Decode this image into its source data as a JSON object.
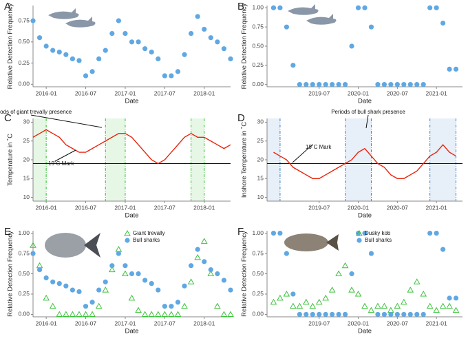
{
  "chart_data": [
    {
      "type": "scatter",
      "panel_label": "A",
      "xlabel": "Date",
      "ylabel": "Relative Detection Frequency",
      "x": [
        "2015-11",
        "2015-12",
        "2016-01",
        "2016-02",
        "2016-03",
        "2016-04",
        "2016-05",
        "2016-06",
        "2016-07",
        "2016-08",
        "2016-09",
        "2016-10",
        "2016-11",
        "2016-12",
        "2017-01",
        "2017-02",
        "2017-03",
        "2017-04",
        "2017-05",
        "2017-06",
        "2017-07",
        "2017-08",
        "2017-09",
        "2017-10",
        "2017-11",
        "2017-12",
        "2018-01",
        "2018-02",
        "2018-03",
        "2018-04",
        "2018-05"
      ],
      "series": [
        {
          "color": "#5fa8e3",
          "marker": "circle",
          "values": [
            0.75,
            0.55,
            0.45,
            0.4,
            0.38,
            0.35,
            0.3,
            0.28,
            0.1,
            0.15,
            0.3,
            0.4,
            0.6,
            0.75,
            0.6,
            0.5,
            0.5,
            0.42,
            0.38,
            0.3,
            0.1,
            0.1,
            0.15,
            0.35,
            0.6,
            0.8,
            0.65,
            0.55,
            0.5,
            0.42,
            0.3
          ]
        }
      ],
      "xlim": [
        "2015-11",
        "2018-05"
      ],
      "xticks": [
        "2016-01",
        "2016-07",
        "2017-01",
        "2017-07",
        "2018-01"
      ],
      "ylim": [
        -0.03,
        0.93
      ],
      "yticks": [
        {
          "value": 0,
          "label": "0.00"
        },
        {
          "value": 0.25,
          "label": "0.25"
        },
        {
          "value": 0.5,
          "label": "0.50"
        },
        {
          "value": 0.75,
          "label": "0.75"
        }
      ]
    },
    {
      "type": "scatter",
      "panel_label": "B",
      "xlabel": "Date",
      "ylabel": "Relative Detection Frequency",
      "x": [
        "2018-12",
        "2019-01",
        "2019-02",
        "2019-03",
        "2019-04",
        "2019-05",
        "2019-06",
        "2019-07",
        "2019-08",
        "2019-09",
        "2019-10",
        "2019-11",
        "2019-12",
        "2020-01",
        "2020-02",
        "2020-03",
        "2020-04",
        "2020-05",
        "2020-06",
        "2020-07",
        "2020-08",
        "2020-09",
        "2020-10",
        "2020-11",
        "2020-12",
        "2021-01",
        "2021-02",
        "2021-03",
        "2021-04"
      ],
      "series": [
        {
          "color": "#5fa8e3",
          "marker": "circle",
          "values": [
            1,
            1,
            0.75,
            0.25,
            0,
            0,
            0,
            0,
            0,
            0,
            0,
            0,
            0.5,
            1,
            1,
            0.75,
            0,
            0,
            0,
            0,
            0,
            0,
            0,
            0,
            1,
            1,
            0.8,
            0.2,
            0.2
          ]
        }
      ],
      "xlim": [
        "2018-11",
        "2021-05"
      ],
      "xticks": [
        "2019-07",
        "2020-01",
        "2020-07",
        "2021-01"
      ],
      "ylim": [
        -0.03,
        1.03
      ],
      "yticks": [
        {
          "value": 0,
          "label": "0.00"
        },
        {
          "value": 0.25,
          "label": "0.25"
        },
        {
          "value": 0.5,
          "label": "0.50"
        },
        {
          "value": 0.75,
          "label": "0.75"
        },
        {
          "value": 1,
          "label": "1.00"
        }
      ]
    },
    {
      "type": "line",
      "panel_label": "C",
      "xlabel": "Date",
      "ylabel": "Temperature in ˚C",
      "x": [
        "2015-11",
        "2015-12",
        "2016-01",
        "2016-02",
        "2016-03",
        "2016-04",
        "2016-05",
        "2016-06",
        "2016-07",
        "2016-08",
        "2016-09",
        "2016-10",
        "2016-11",
        "2016-12",
        "2017-01",
        "2017-02",
        "2017-03",
        "2017-04",
        "2017-05",
        "2017-06",
        "2017-07",
        "2017-08",
        "2017-09",
        "2017-10",
        "2017-11",
        "2017-12",
        "2018-01",
        "2018-02",
        "2018-03",
        "2018-04",
        "2018-05"
      ],
      "series": [
        {
          "color": "#e8220c",
          "values": [
            26,
            27,
            28,
            27,
            26,
            24,
            23,
            22,
            22,
            23,
            24,
            25,
            26,
            27,
            27,
            26,
            24,
            22,
            20,
            19,
            20,
            22,
            24,
            26,
            27,
            26,
            26,
            25,
            24,
            23,
            24
          ]
        }
      ],
      "periods": [
        [
          "2015-11",
          "2016-01"
        ],
        [
          "2016-10",
          "2017-01"
        ],
        [
          "2017-11",
          "2018-01"
        ]
      ],
      "period_color": "#2fbf2f",
      "reference_line": {
        "value": 19,
        "label": "19˚C Mark"
      },
      "annotation": "Periods of giant trevally presence",
      "xlim": [
        "2015-11",
        "2018-05"
      ],
      "xticks": [
        "2016-01",
        "2016-07",
        "2017-01",
        "2017-07",
        "2018-01"
      ],
      "ylim": [
        9,
        31
      ],
      "yticks": [
        10,
        15,
        20,
        25,
        30
      ]
    },
    {
      "type": "line",
      "panel_label": "D",
      "xlabel": "Date",
      "ylabel": "Inshore Temperature in ˚C",
      "x": [
        "2018-12",
        "2019-01",
        "2019-02",
        "2019-03",
        "2019-04",
        "2019-05",
        "2019-06",
        "2019-07",
        "2019-08",
        "2019-09",
        "2019-10",
        "2019-11",
        "2019-12",
        "2020-01",
        "2020-02",
        "2020-03",
        "2020-04",
        "2020-05",
        "2020-06",
        "2020-07",
        "2020-08",
        "2020-09",
        "2020-10",
        "2020-11",
        "2020-12",
        "2021-01",
        "2021-02",
        "2021-03",
        "2021-04"
      ],
      "series": [
        {
          "color": "#e8220c",
          "values": [
            22,
            21,
            20,
            18,
            17,
            16,
            15,
            15,
            16,
            17,
            18,
            19,
            20,
            22,
            23,
            21,
            19,
            18,
            16,
            15,
            15,
            16,
            17,
            19,
            21,
            22,
            24,
            22,
            21
          ]
        }
      ],
      "periods": [
        [
          "2018-11",
          "2019-01"
        ],
        [
          "2019-11",
          "2020-03"
        ],
        [
          "2020-12",
          "2021-04"
        ]
      ],
      "period_color": "#3a7fc8",
      "reference_line": {
        "value": 19,
        "label": "19˚C Mark"
      },
      "annotation": "Periods of bull shark presence",
      "xlim": [
        "2018-11",
        "2021-05"
      ],
      "xticks": [
        "2019-07",
        "2020-01",
        "2020-07",
        "2021-01"
      ],
      "ylim": [
        9,
        31
      ],
      "yticks": [
        10,
        15,
        20,
        25,
        30
      ]
    },
    {
      "type": "scatter",
      "panel_label": "E",
      "xlabel": "Date",
      "ylabel": "Relative Detection Frequency",
      "legend": "top-right",
      "x": [
        "2015-11",
        "2015-12",
        "2016-01",
        "2016-02",
        "2016-03",
        "2016-04",
        "2016-05",
        "2016-06",
        "2016-07",
        "2016-08",
        "2016-09",
        "2016-10",
        "2016-11",
        "2016-12",
        "2017-01",
        "2017-02",
        "2017-03",
        "2017-04",
        "2017-05",
        "2017-06",
        "2017-07",
        "2017-08",
        "2017-09",
        "2017-10",
        "2017-11",
        "2017-12",
        "2018-01",
        "2018-02",
        "2018-03",
        "2018-04",
        "2018-05"
      ],
      "series": [
        {
          "name": "Giant trevally",
          "color": "#3cc23c",
          "marker": "triangle",
          "values": [
            0.85,
            0.6,
            0.2,
            0.1,
            0,
            0,
            0,
            0,
            0,
            0,
            0.1,
            0.3,
            0.55,
            0.8,
            0.5,
            0.2,
            0.05,
            0,
            0,
            0,
            0,
            0,
            0,
            0.1,
            0.4,
            0.7,
            0.9,
            0.5,
            0.1,
            0,
            0
          ]
        },
        {
          "name": "Bull sharks",
          "color": "#5fa8e3",
          "marker": "circle",
          "values": [
            0.75,
            0.55,
            0.45,
            0.4,
            0.38,
            0.35,
            0.3,
            0.28,
            0.1,
            0.15,
            0.3,
            0.4,
            0.6,
            0.75,
            0.6,
            0.5,
            0.5,
            0.42,
            0.38,
            0.3,
            0.1,
            0.1,
            0.15,
            0.35,
            0.6,
            0.8,
            0.65,
            0.55,
            0.5,
            0.42,
            0.3
          ]
        }
      ],
      "xlim": [
        "2015-11",
        "2018-05"
      ],
      "xticks": [
        "2016-01",
        "2016-07",
        "2017-01",
        "2017-07",
        "2018-01"
      ],
      "ylim": [
        -0.03,
        1.03
      ],
      "yticks": [
        {
          "value": 0,
          "label": "0.00"
        },
        {
          "value": 0.25,
          "label": "0.25"
        },
        {
          "value": 0.5,
          "label": "0.50"
        },
        {
          "value": 0.75,
          "label": "0.75"
        },
        {
          "value": 1,
          "label": "1.00"
        }
      ]
    },
    {
      "type": "scatter",
      "panel_label": "F",
      "xlabel": "Date",
      "ylabel": "Relative Detection Frequency",
      "legend": "top-right",
      "x": [
        "2018-12",
        "2019-01",
        "2019-02",
        "2019-03",
        "2019-04",
        "2019-05",
        "2019-06",
        "2019-07",
        "2019-08",
        "2019-09",
        "2019-10",
        "2019-11",
        "2019-12",
        "2020-01",
        "2020-02",
        "2020-03",
        "2020-04",
        "2020-05",
        "2020-06",
        "2020-07",
        "2020-08",
        "2020-09",
        "2020-10",
        "2020-11",
        "2020-12",
        "2021-01",
        "2021-02",
        "2021-03",
        "2021-04"
      ],
      "series": [
        {
          "name": "Dusky kob",
          "color": "#3cc23c",
          "marker": "triangle",
          "values": [
            0.15,
            0.2,
            0.25,
            0.1,
            0.1,
            0.15,
            0.1,
            0.15,
            0.2,
            0.3,
            0.5,
            0.6,
            0.3,
            0.25,
            0.1,
            0.05,
            0.1,
            0.1,
            0.05,
            0.1,
            0.15,
            0.3,
            0.4,
            0.25,
            0.1,
            0.05,
            0.1,
            0.1,
            0.05
          ]
        },
        {
          "name": "Bull sharks",
          "color": "#5fa8e3",
          "marker": "circle",
          "values": [
            1,
            1,
            0.75,
            0.25,
            0,
            0,
            0,
            0,
            0,
            0,
            0,
            0,
            0.5,
            1,
            1,
            0.75,
            0,
            0,
            0,
            0,
            0,
            0,
            0,
            0,
            1,
            1,
            0.8,
            0.2,
            0.2
          ]
        }
      ],
      "xlim": [
        "2018-11",
        "2021-05"
      ],
      "xticks": [
        "2019-07",
        "2020-01",
        "2020-07",
        "2021-01"
      ],
      "ylim": [
        -0.03,
        1.03
      ],
      "yticks": [
        {
          "value": 0,
          "label": "0.00"
        },
        {
          "value": 0.25,
          "label": "0.25"
        },
        {
          "value": 0.5,
          "label": "0.50"
        },
        {
          "value": 0.75,
          "label": "0.75"
        },
        {
          "value": 1,
          "label": "1.00"
        }
      ]
    }
  ]
}
